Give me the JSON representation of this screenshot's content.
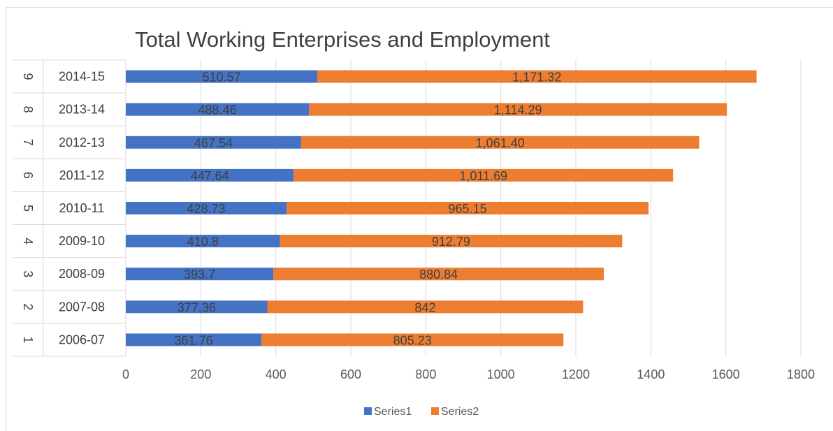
{
  "chart_data": {
    "type": "bar",
    "orientation": "horizontal",
    "stacked": true,
    "title": "Total Working Enterprises and Employment",
    "xlabel": "",
    "ylabel": "",
    "xlim": [
      0,
      1800
    ],
    "x_ticks": [
      "0",
      "200",
      "400",
      "600",
      "800",
      "1000",
      "1200",
      "1400",
      "1600",
      "1800"
    ],
    "grid": true,
    "legend_position": "bottom",
    "categories": [
      {
        "index": "1",
        "label": "2006-07"
      },
      {
        "index": "2",
        "label": "2007-08"
      },
      {
        "index": "3",
        "label": "2008-09"
      },
      {
        "index": "4",
        "label": "2009-10"
      },
      {
        "index": "5",
        "label": "2010-11"
      },
      {
        "index": "6",
        "label": "2011-12"
      },
      {
        "index": "7",
        "label": "2012-13"
      },
      {
        "index": "8",
        "label": "2013-14"
      },
      {
        "index": "9",
        "label": "2014-15"
      }
    ],
    "series": [
      {
        "name": "Series1",
        "color": "#4472c4",
        "values": [
          361.76,
          377.36,
          393.7,
          410.8,
          428.73,
          447.64,
          467.54,
          488.46,
          510.57
        ],
        "labels": [
          "361.76",
          "377.36",
          "393.7",
          "410.8",
          "428.73",
          "447.64",
          "467.54",
          "488.46",
          "510.57"
        ]
      },
      {
        "name": "Series2",
        "color": "#ed7d31",
        "values": [
          805.23,
          842,
          880.84,
          912.79,
          965.15,
          1011.69,
          1061.4,
          1114.29,
          1171.32
        ],
        "labels": [
          "805.23",
          "842",
          "880.84",
          "912.79",
          "965.15",
          "1,011.69",
          "1,061.40",
          "1,114.29",
          "1,171.32"
        ]
      }
    ]
  }
}
